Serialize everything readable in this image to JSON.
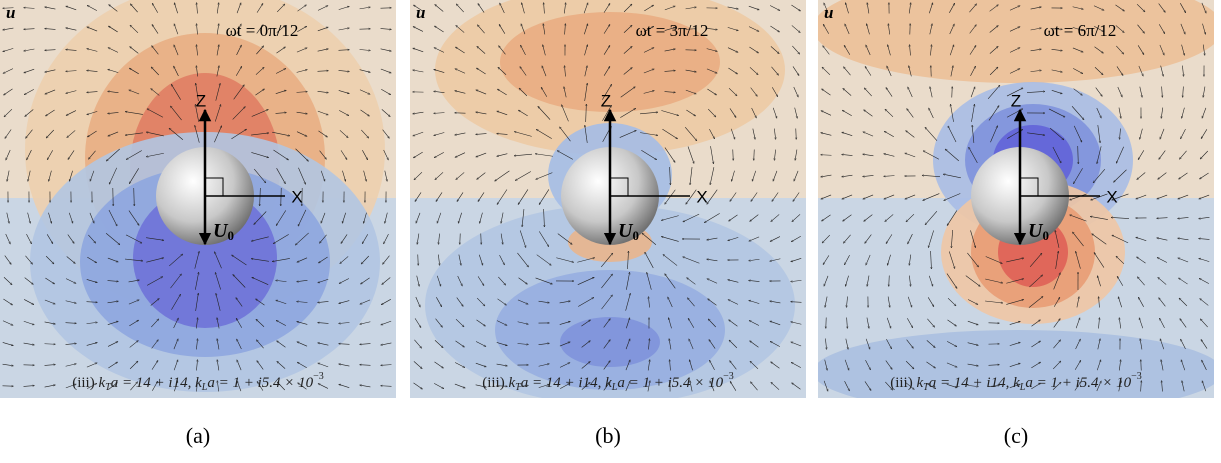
{
  "panels": [
    {
      "field_label": "u",
      "time_label": "ωt = 0π/12",
      "z_label": "Z",
      "x_label": "X",
      "velocity_label": "U",
      "velocity_sub": "0",
      "caption": [
        "(iii) ",
        "k",
        "T",
        "a = 14 + i14, ",
        "k",
        "L",
        "a = 1 + i5.4 × 10",
        "−3"
      ],
      "panel_label": "(a)"
    },
    {
      "field_label": "u",
      "time_label": "ωt = 3π/12",
      "z_label": "Z",
      "x_label": "X",
      "velocity_label": "U",
      "velocity_sub": "0",
      "caption": [
        "(iii) ",
        "k",
        "T",
        "a = 14 + i14, ",
        "k",
        "L",
        "a = 1 + i5.4 × 10",
        "−3"
      ],
      "panel_label": "(b)"
    },
    {
      "field_label": "u",
      "time_label": "ωt = 6π/12",
      "z_label": "Z",
      "x_label": "X",
      "velocity_label": "U",
      "velocity_sub": "0",
      "caption": [
        "(iii) ",
        "k",
        "T",
        "a = 14 + i14, ",
        "k",
        "L",
        "a = 1 + i5.4 × 10",
        "−3"
      ],
      "panel_label": "(c)"
    }
  ]
}
